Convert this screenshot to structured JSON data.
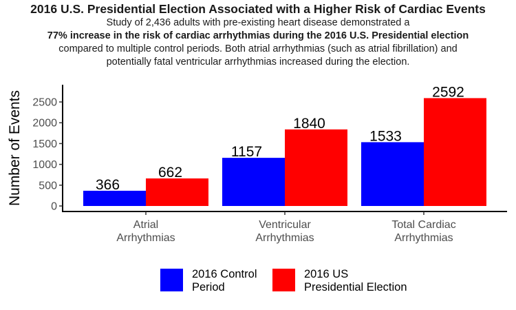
{
  "header": {
    "title": "2016 U.S. Presidential Election Associated with a Higher Risk of Cardiac Events",
    "line1": "Study of 2,436 adults with pre-existing heart disease demonstrated a",
    "line2": "77% increase in the risk of cardiac arrhythmias during the 2016 U.S. Presidential election",
    "line3": "compared to multiple control periods. Both atrial arrhythmias (such as atrial fibrillation) and",
    "line4": "potentially fatal ventricular arrhythmias increased during the election."
  },
  "chart_data": {
    "type": "bar",
    "title": "2016 U.S. Presidential Election Associated with a Higher Risk of Cardiac Events",
    "xlabel": "",
    "ylabel": "Number of Events",
    "ylim": [
      0,
      2800
    ],
    "yticks": [
      0,
      500,
      1000,
      1500,
      2000,
      2500
    ],
    "grid": false,
    "legend_position": "bottom",
    "categories": [
      [
        "Atrial",
        "Arrhythmias"
      ],
      [
        "Ventricular",
        "Arrhythmias"
      ],
      [
        "Total Cardiac",
        "Arrhythmias"
      ]
    ],
    "series": [
      {
        "name": [
          "2016 Control",
          "Period"
        ],
        "color": "#0000ff",
        "values": [
          366,
          1157,
          1533
        ]
      },
      {
        "name": [
          "2016 US",
          "Presidential Election"
        ],
        "color": "#ff0000",
        "values": [
          662,
          1840,
          2592
        ]
      }
    ]
  }
}
